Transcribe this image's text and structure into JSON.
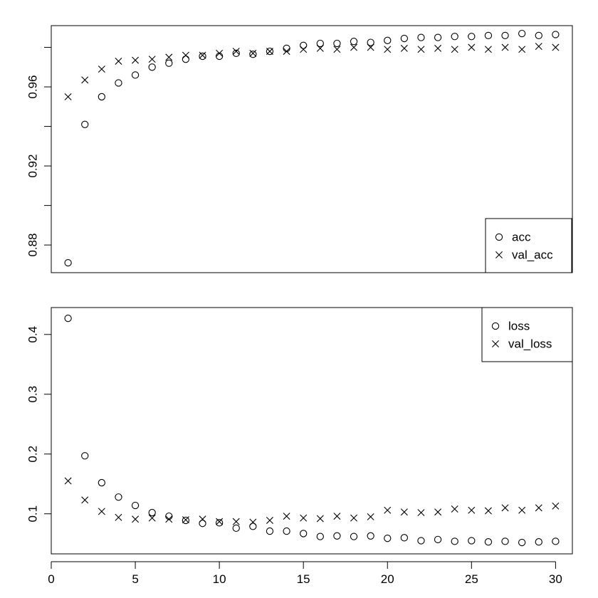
{
  "chart_data": [
    {
      "type": "scatter",
      "title": "",
      "xlabel": "",
      "ylabel": "",
      "x": [
        1,
        2,
        3,
        4,
        5,
        6,
        7,
        8,
        9,
        10,
        11,
        12,
        13,
        14,
        15,
        16,
        17,
        18,
        19,
        20,
        21,
        22,
        23,
        24,
        25,
        26,
        27,
        28,
        29,
        30
      ],
      "xlim": [
        0,
        31
      ],
      "ylim": [
        0.866,
        0.991
      ],
      "y_ticks": [
        0.88,
        0.9,
        0.92,
        0.94,
        0.96,
        0.98
      ],
      "y_tick_labels": [
        "0.88",
        "",
        "0.92",
        "",
        "0.96",
        ""
      ],
      "x_axis_shown": false,
      "legend_position": "bottom-right",
      "series": [
        {
          "name": "acc",
          "marker": "circle",
          "values": [
            0.871,
            0.941,
            0.955,
            0.962,
            0.966,
            0.97,
            0.972,
            0.974,
            0.9755,
            0.9755,
            0.977,
            0.9765,
            0.978,
            0.9795,
            0.981,
            0.982,
            0.982,
            0.983,
            0.9825,
            0.9835,
            0.9845,
            0.985,
            0.985,
            0.9855,
            0.9855,
            0.986,
            0.986,
            0.987,
            0.986,
            0.9865
          ]
        },
        {
          "name": "val_acc",
          "marker": "cross",
          "values": [
            0.955,
            0.9635,
            0.969,
            0.973,
            0.9735,
            0.974,
            0.975,
            0.976,
            0.976,
            0.977,
            0.978,
            0.977,
            0.978,
            0.978,
            0.979,
            0.9795,
            0.979,
            0.98,
            0.98,
            0.979,
            0.9795,
            0.979,
            0.9795,
            0.979,
            0.98,
            0.979,
            0.98,
            0.979,
            0.9805,
            0.98
          ]
        }
      ]
    },
    {
      "type": "scatter",
      "title": "",
      "xlabel": "",
      "ylabel": "",
      "x": [
        1,
        2,
        3,
        4,
        5,
        6,
        7,
        8,
        9,
        10,
        11,
        12,
        13,
        14,
        15,
        16,
        17,
        18,
        19,
        20,
        21,
        22,
        23,
        24,
        25,
        26,
        27,
        28,
        29,
        30
      ],
      "xlim": [
        0,
        31
      ],
      "ylim": [
        0.033,
        0.445
      ],
      "x_ticks": [
        0,
        5,
        10,
        15,
        20,
        25,
        30
      ],
      "x_tick_labels": [
        "0",
        "5",
        "10",
        "15",
        "20",
        "25",
        "30"
      ],
      "y_ticks": [
        0.1,
        0.2,
        0.3,
        0.4
      ],
      "y_tick_labels": [
        "0.1",
        "0.2",
        "0.3",
        "0.4"
      ],
      "legend_position": "top-right",
      "series": [
        {
          "name": "loss",
          "marker": "circle",
          "values": [
            0.427,
            0.197,
            0.152,
            0.128,
            0.114,
            0.102,
            0.096,
            0.089,
            0.084,
            0.085,
            0.076,
            0.079,
            0.071,
            0.071,
            0.067,
            0.062,
            0.063,
            0.062,
            0.063,
            0.059,
            0.06,
            0.055,
            0.057,
            0.054,
            0.055,
            0.053,
            0.054,
            0.052,
            0.053,
            0.054
          ]
        },
        {
          "name": "val_loss",
          "marker": "cross",
          "values": [
            0.155,
            0.123,
            0.104,
            0.094,
            0.091,
            0.093,
            0.091,
            0.09,
            0.091,
            0.087,
            0.087,
            0.086,
            0.089,
            0.096,
            0.093,
            0.092,
            0.096,
            0.093,
            0.095,
            0.106,
            0.103,
            0.102,
            0.103,
            0.108,
            0.106,
            0.105,
            0.11,
            0.106,
            0.11,
            0.113
          ]
        }
      ]
    }
  ]
}
